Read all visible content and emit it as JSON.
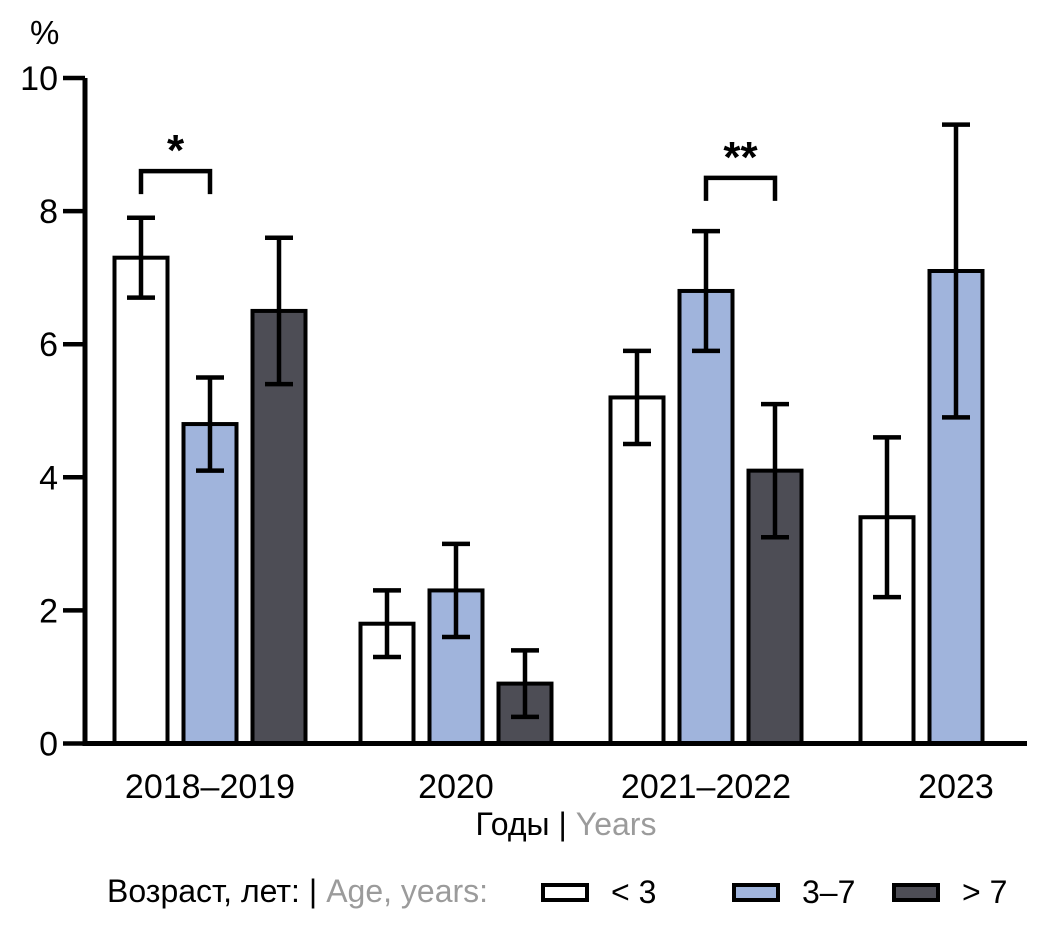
{
  "chart_data": {
    "type": "bar",
    "title": "",
    "ylabel": "%",
    "xlabel_ru": "Годы",
    "xlabel_sep": "|",
    "xlabel_en": "Years",
    "ylim": [
      0,
      10
    ],
    "yticks": [
      0,
      2,
      4,
      6,
      8,
      10
    ],
    "grid": false,
    "legend_position": "bottom",
    "bar_border_color": "#000000",
    "categories": [
      "2018–2019",
      "2020",
      "2021–2022",
      "2023"
    ],
    "series": [
      {
        "name": "< 3",
        "color": "#ffffff",
        "values": [
          7.3,
          1.8,
          5.2,
          3.4
        ],
        "err_low": [
          6.7,
          1.3,
          4.5,
          2.2
        ],
        "err_high": [
          7.9,
          2.3,
          5.9,
          4.6
        ]
      },
      {
        "name": "3–7",
        "color": "#a0b4dc",
        "values": [
          4.8,
          2.3,
          6.8,
          7.1
        ],
        "err_low": [
          4.1,
          1.6,
          5.9,
          4.9
        ],
        "err_high": [
          5.5,
          3.0,
          7.7,
          9.3
        ]
      },
      {
        "name": "> 7",
        "color": "#4d4d55",
        "values": [
          6.5,
          0.9,
          4.1,
          null
        ],
        "err_low": [
          5.4,
          0.4,
          3.1,
          null
        ],
        "err_high": [
          7.6,
          1.4,
          5.1,
          null
        ]
      }
    ],
    "annotations": [
      {
        "label": "*",
        "group": 0,
        "series": [
          0,
          1
        ],
        "bracket_y": 8.6
      },
      {
        "label": "**",
        "group": 2,
        "series": [
          1,
          2
        ],
        "bracket_y": 8.5
      }
    ]
  },
  "legend": {
    "title_ru": "Возраст, лет:",
    "separator": "|",
    "title_en": "Age, years:"
  }
}
